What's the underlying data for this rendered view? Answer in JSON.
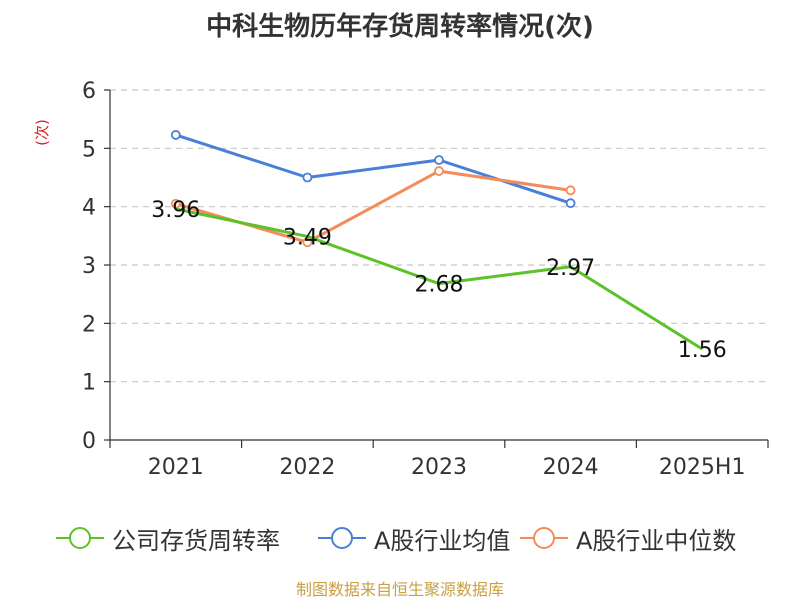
{
  "chart_data": {
    "type": "line",
    "title": "中科生物历年存货周转率情况(次)",
    "ylabel": "(次)",
    "xlabel": "",
    "categories": [
      "2021",
      "2022",
      "2023",
      "2024",
      "2025H1"
    ],
    "ylim": [
      0,
      6
    ],
    "yticks": [
      0,
      1,
      2,
      3,
      4,
      5,
      6
    ],
    "grid": true,
    "legend_position": "bottom",
    "series": [
      {
        "name": "公司存货周转率",
        "color": "#5cc22a",
        "values": [
          3.96,
          3.49,
          2.68,
          2.97,
          1.56
        ],
        "show_labels": true,
        "show_markers": false
      },
      {
        "name": "A股行业均值",
        "color": "#4a7fd8",
        "values": [
          5.23,
          4.5,
          4.8,
          4.06,
          null
        ],
        "show_labels": false,
        "show_markers": true
      },
      {
        "name": "A股行业中位数",
        "color": "#f28c5a",
        "values": [
          4.05,
          3.39,
          4.61,
          4.28,
          null
        ],
        "show_labels": false,
        "show_markers": true
      }
    ],
    "data_labels": [
      "3.96",
      "3.49",
      "2.68",
      "2.97",
      "1.56"
    ]
  },
  "source": "制图数据来自恒生聚源数据库"
}
